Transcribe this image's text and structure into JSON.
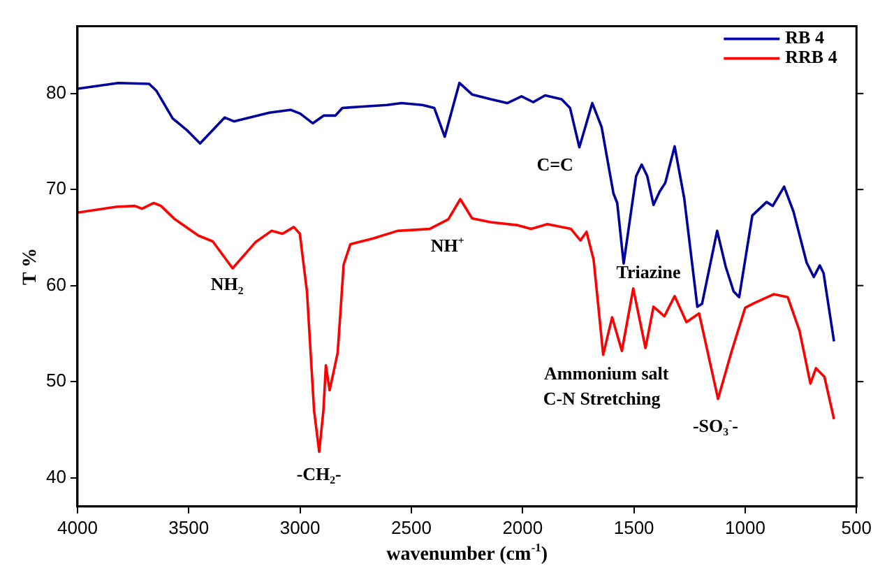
{
  "chart_data": {
    "type": "line",
    "xlabel": "wavenumber (cm$^{-1}$)",
    "ylabel": "T %",
    "xlim": [
      4000,
      500
    ],
    "xticks": [
      4000,
      3500,
      3000,
      2500,
      2000,
      1500,
      1000,
      500
    ],
    "ylim": [
      37,
      87
    ],
    "yticks": [
      40,
      50,
      60,
      70,
      80
    ],
    "grid": false,
    "legend": "top right",
    "marker": "none",
    "line_style": "solid",
    "series": [
      {
        "name": "RB 4",
        "color": "#00009f",
        "x": [
          4000,
          3816,
          3678,
          3646,
          3572,
          3509,
          3449,
          3339,
          3297,
          3138,
          3043,
          2999,
          2943,
          2894,
          2841,
          2810,
          2609,
          2545,
          2450,
          2397,
          2350,
          2284,
          2227,
          2143,
          2069,
          2005,
          1952,
          1899,
          1825,
          1787,
          1745,
          1687,
          1645,
          1592,
          1575,
          1546,
          1490,
          1465,
          1440,
          1412,
          1384,
          1359,
          1317,
          1274,
          1215,
          1194,
          1126,
          1088,
          1052,
          1027,
          968,
          904,
          876,
          825,
          783,
          724,
          692,
          665,
          648,
          601
        ],
        "values": [
          80.5,
          81.1,
          81.0,
          80.3,
          77.4,
          76.2,
          74.8,
          77.5,
          77.1,
          78.0,
          78.3,
          77.9,
          76.9,
          77.7,
          77.7,
          78.5,
          78.8,
          79.0,
          78.8,
          78.5,
          75.5,
          81.1,
          79.9,
          79.4,
          79.0,
          79.7,
          79.1,
          79.8,
          79.4,
          78.5,
          74.4,
          79.0,
          76.5,
          69.6,
          68.6,
          62.3,
          71.4,
          72.6,
          71.4,
          68.4,
          69.8,
          70.7,
          74.5,
          69.1,
          57.8,
          58.1,
          65.7,
          62.0,
          59.4,
          58.8,
          67.3,
          68.7,
          68.3,
          70.3,
          67.7,
          62.4,
          60.9,
          62.1,
          61.3,
          54.2
        ]
      },
      {
        "name": "RRB 4",
        "color": "#ff0000",
        "x": [
          4000,
          3827,
          3742,
          3710,
          3657,
          3625,
          3562,
          3456,
          3392,
          3303,
          3201,
          3128,
          3079,
          3028,
          3001,
          2969,
          2937,
          2914,
          2895,
          2884,
          2867,
          2831,
          2804,
          2774,
          2672,
          2562,
          2418,
          2334,
          2280,
          2227,
          2143,
          2026,
          1963,
          1889,
          1783,
          1740,
          1713,
          1681,
          1638,
          1598,
          1554,
          1503,
          1448,
          1412,
          1363,
          1317,
          1264,
          1207,
          1122,
          1063,
          1000,
          957,
          872,
          809,
          756,
          707,
          682,
          644,
          601
        ],
        "values": [
          67.6,
          68.2,
          68.3,
          68.0,
          68.6,
          68.3,
          66.9,
          65.2,
          64.6,
          61.8,
          64.5,
          65.7,
          65.4,
          66.1,
          65.4,
          59.4,
          47.0,
          42.7,
          47.0,
          51.7,
          49.1,
          53.0,
          62.2,
          64.3,
          64.9,
          65.7,
          65.9,
          66.9,
          69.0,
          67.0,
          66.6,
          66.3,
          65.9,
          66.4,
          65.9,
          64.7,
          65.6,
          62.7,
          52.8,
          56.7,
          53.2,
          59.7,
          53.5,
          57.8,
          56.8,
          58.9,
          56.2,
          57.1,
          48.2,
          53.0,
          57.7,
          58.2,
          59.1,
          58.8,
          55.3,
          49.8,
          51.4,
          50.5,
          46.1
        ]
      }
    ],
    "annotations": [
      "NH$_{2}$",
      "-CH$_{2}$-",
      "NH$^{+}$",
      "C=C",
      "Triazine",
      "Ammonium salt",
      "C-N Stretching",
      "-SO$_{3}$$^{-}$-"
    ]
  }
}
